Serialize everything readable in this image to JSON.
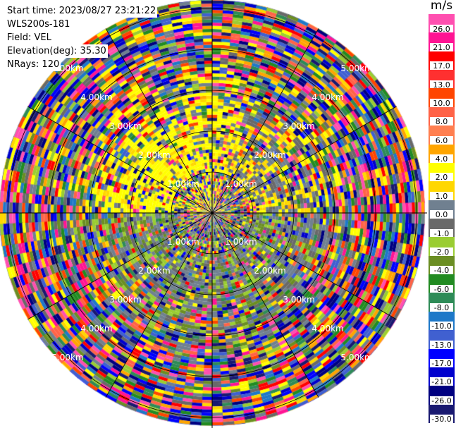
{
  "info": {
    "start_time": "Start time: 2023/08/27 23:21:22",
    "instrument": "WLS200s-181",
    "field": "Field: VEL",
    "elevation": "Elevation(deg): 35.30",
    "nrays": "NRays: 120"
  },
  "chart_data": {
    "type": "heatmap",
    "projection": "polar-ppi",
    "nrays": 120,
    "range_ring_labels": [
      "1.00km",
      "2.00km",
      "3.00km",
      "4.00km",
      "5.00km"
    ],
    "spoke_interval_deg": 30,
    "colorbar": {
      "title": "m/s",
      "labels": [
        "26.0",
        "21.0",
        "17.0",
        "13.0",
        "10.0",
        "8.0",
        "6.0",
        "4.0",
        "2.0",
        "1.0",
        "0.0",
        "-1.0",
        "-2.0",
        "-4.0",
        "-6.0",
        "-8.0",
        "-10.0",
        "-13.0",
        "-17.0",
        "-21.0",
        "-26.0",
        "-30.0"
      ],
      "colors": [
        "#ff4fb0",
        "#ff1493",
        "#ff0000",
        "#ff3030",
        "#ff4500",
        "#ff6347",
        "#ff7f50",
        "#ffa500",
        "#ffff00",
        "#ffd700",
        "#708090",
        "#696969",
        "#9acd32",
        "#6b8e23",
        "#228b22",
        "#2e8b57",
        "#1e78c8",
        "#4060d0",
        "#0000ff",
        "#0000cd",
        "#000080",
        "#191970"
      ]
    }
  }
}
